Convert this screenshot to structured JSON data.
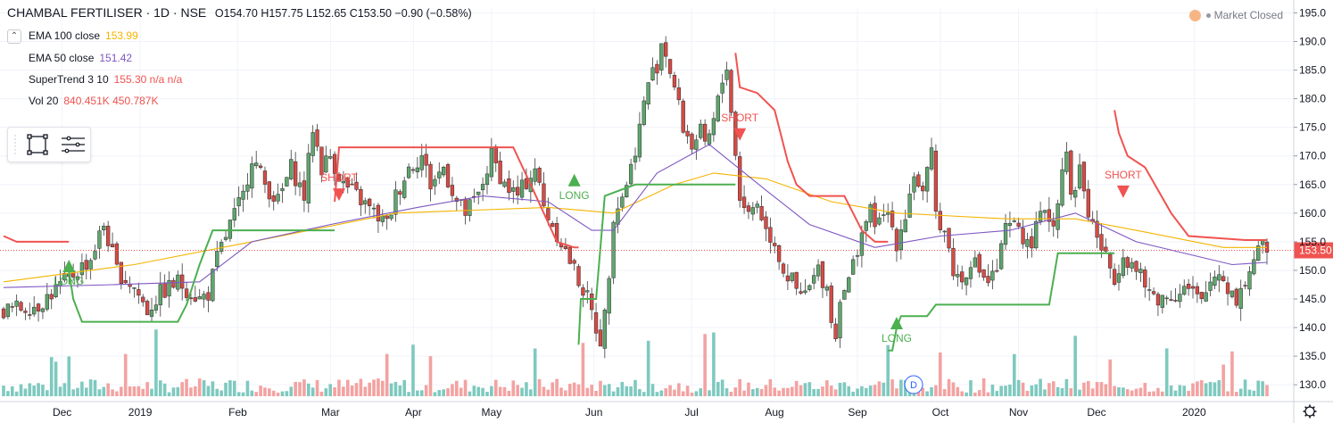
{
  "header": {
    "symbol": "CHAMBAL FERTILISER · 1D · NSE",
    "ohlc": "O154.70  H157.75  L152.65  C153.50  −0.90 (−0.58%)"
  },
  "status": {
    "label": "Market Closed"
  },
  "indicators": [
    {
      "label": "EMA 100 close",
      "value": "153.99",
      "color": "#f4b400"
    },
    {
      "label": "EMA 50 close",
      "value": "151.42",
      "color": "#7e57c2"
    },
    {
      "label": "SuperTrend 3 10",
      "value": "155.30  n/a  n/a",
      "color": "#ef5350"
    },
    {
      "label": "Vol 20",
      "value": "840.451K  450.787K",
      "color": "#ef5350"
    }
  ],
  "price_label": "153.50",
  "colors": {
    "up": "#4caf50",
    "down": "#ef5350",
    "up_body": "#5fa66d",
    "down_body": "#d64b45",
    "ema100": "#f4b400",
    "ema50": "#7e57c2",
    "st_up": "#4caf50",
    "st_down": "#f05350",
    "vol_up": "#7ec9bf",
    "vol_down": "#f3a2a1"
  },
  "chart_data": {
    "type": "candlestick",
    "title": "CHAMBAL FERTILISER · 1D · NSE",
    "ylim": [
      128,
      196
    ],
    "y_ticks": [
      130,
      135,
      140,
      145,
      150,
      155,
      160,
      165,
      170,
      175,
      180,
      185,
      190,
      195
    ],
    "x_ticks": [
      "Dec",
      "2019",
      "Feb",
      "Mar",
      "Apr",
      "May",
      "Jun",
      "Jul",
      "Aug",
      "Sep",
      "Oct",
      "Nov",
      "Dec",
      "2020"
    ],
    "close_path": [
      [
        0,
        143
      ],
      [
        8,
        144
      ],
      [
        14,
        148
      ],
      [
        20,
        152
      ],
      [
        23,
        158
      ],
      [
        26,
        150
      ],
      [
        30,
        147
      ],
      [
        33,
        143
      ],
      [
        36,
        146
      ],
      [
        40,
        148
      ],
      [
        45,
        145
      ],
      [
        47,
        146
      ],
      [
        49,
        152
      ],
      [
        52,
        158
      ],
      [
        55,
        163
      ],
      [
        57,
        170
      ],
      [
        60,
        165
      ],
      [
        63,
        162
      ],
      [
        66,
        168
      ],
      [
        69,
        163
      ],
      [
        71,
        175
      ],
      [
        73,
        168
      ],
      [
        75,
        170
      ],
      [
        78,
        165
      ],
      [
        81,
        163
      ],
      [
        85,
        160
      ],
      [
        88,
        158
      ],
      [
        90,
        163
      ],
      [
        93,
        168
      ],
      [
        96,
        170
      ],
      [
        98,
        165
      ],
      [
        101,
        168
      ],
      [
        104,
        162
      ],
      [
        106,
        160
      ],
      [
        109,
        163
      ],
      [
        112,
        170
      ],
      [
        115,
        165
      ],
      [
        118,
        163
      ],
      [
        122,
        168
      ],
      [
        124,
        161
      ],
      [
        126,
        158
      ],
      [
        128,
        155
      ],
      [
        131,
        150
      ],
      [
        134,
        145
      ],
      [
        136,
        140
      ],
      [
        137,
        138
      ],
      [
        138,
        142
      ],
      [
        139,
        150
      ],
      [
        140,
        160
      ],
      [
        142,
        163
      ],
      [
        144,
        168
      ],
      [
        146,
        175
      ],
      [
        148,
        183
      ],
      [
        150,
        186
      ],
      [
        151,
        190
      ],
      [
        152,
        188
      ],
      [
        154,
        182
      ],
      [
        156,
        175
      ],
      [
        158,
        172
      ],
      [
        160,
        174
      ],
      [
        161,
        171
      ],
      [
        163,
        176
      ],
      [
        165,
        183
      ],
      [
        166,
        186
      ],
      [
        167,
        178
      ],
      [
        168,
        170
      ],
      [
        169,
        163
      ],
      [
        171,
        160
      ],
      [
        173,
        162
      ],
      [
        175,
        157
      ],
      [
        177,
        155
      ],
      [
        179,
        150
      ],
      [
        181,
        148
      ],
      [
        183,
        145
      ],
      [
        185,
        147
      ],
      [
        187,
        150
      ],
      [
        189,
        147
      ],
      [
        190,
        142
      ],
      [
        191,
        138
      ],
      [
        192,
        146
      ],
      [
        194,
        148
      ],
      [
        195,
        151
      ],
      [
        197,
        157
      ],
      [
        199,
        160
      ],
      [
        201,
        158
      ],
      [
        203,
        160
      ],
      [
        205,
        155
      ],
      [
        207,
        160
      ],
      [
        209,
        167
      ],
      [
        211,
        163
      ],
      [
        213,
        170
      ],
      [
        214,
        160
      ],
      [
        216,
        157
      ],
      [
        218,
        150
      ],
      [
        220,
        148
      ],
      [
        222,
        152
      ],
      [
        224,
        150
      ],
      [
        226,
        148
      ],
      [
        228,
        150
      ],
      [
        230,
        157
      ],
      [
        233,
        158
      ],
      [
        235,
        154
      ],
      [
        237,
        157
      ],
      [
        239,
        161
      ],
      [
        241,
        158
      ],
      [
        243,
        168
      ],
      [
        244,
        172
      ],
      [
        245,
        162
      ],
      [
        247,
        168
      ],
      [
        249,
        160
      ],
      [
        251,
        156
      ],
      [
        253,
        152
      ],
      [
        255,
        149
      ],
      [
        257,
        153
      ],
      [
        260,
        150
      ],
      [
        263,
        146
      ],
      [
        266,
        145
      ],
      [
        269,
        146
      ],
      [
        271,
        147
      ],
      [
        273,
        146
      ],
      [
        275,
        144
      ],
      [
        277,
        148
      ],
      [
        279,
        150
      ],
      [
        281,
        147
      ],
      [
        283,
        145
      ],
      [
        285,
        148
      ],
      [
        287,
        152
      ],
      [
        289,
        154
      ],
      [
        290,
        153.5
      ]
    ],
    "last_price": 153.5,
    "ema100_path": [
      [
        0,
        148
      ],
      [
        30,
        151
      ],
      [
        57,
        155
      ],
      [
        90,
        160
      ],
      [
        125,
        161
      ],
      [
        140,
        160
      ],
      [
        154,
        165
      ],
      [
        163,
        167
      ],
      [
        175,
        166
      ],
      [
        190,
        162
      ],
      [
        205,
        160
      ],
      [
        230,
        159
      ],
      [
        246,
        159
      ],
      [
        260,
        157
      ],
      [
        280,
        154
      ],
      [
        290,
        154
      ]
    ],
    "ema50_path": [
      [
        0,
        147
      ],
      [
        25,
        147.5
      ],
      [
        45,
        148
      ],
      [
        57,
        155
      ],
      [
        75,
        158
      ],
      [
        95,
        161
      ],
      [
        110,
        163
      ],
      [
        125,
        162
      ],
      [
        135,
        157
      ],
      [
        140,
        157
      ],
      [
        150,
        167
      ],
      [
        162,
        172
      ],
      [
        175,
        164
      ],
      [
        185,
        158
      ],
      [
        200,
        154
      ],
      [
        215,
        156
      ],
      [
        231,
        157
      ],
      [
        246,
        160
      ],
      [
        260,
        155
      ],
      [
        282,
        151
      ],
      [
        290,
        151.4
      ]
    ],
    "supertrend_segments": [
      {
        "trend": "down",
        "points": [
          [
            0,
            156
          ],
          [
            3,
            155
          ],
          [
            10,
            155
          ],
          [
            15,
            155
          ]
        ]
      },
      {
        "trend": "up",
        "points": [
          [
            15,
            150
          ],
          [
            16,
            145
          ],
          [
            18,
            141
          ],
          [
            28,
            141
          ],
          [
            40,
            141
          ],
          [
            42,
            144
          ],
          [
            45,
            151
          ],
          [
            48,
            157
          ],
          [
            58,
            157
          ],
          [
            73,
            157
          ],
          [
            76,
            157
          ]
        ]
      },
      {
        "trend": "down",
        "points": [
          [
            76,
            162
          ],
          [
            77,
            171.5
          ],
          [
            95,
            171.5
          ],
          [
            117,
            171.5
          ],
          [
            121,
            165
          ],
          [
            124,
            160
          ],
          [
            127,
            155
          ],
          [
            131,
            154
          ],
          [
            132,
            154
          ]
        ]
      },
      {
        "trend": "up",
        "points": [
          [
            132,
            137
          ],
          [
            132.5,
            145
          ],
          [
            136,
            145
          ],
          [
            138,
            163
          ],
          [
            145,
            165
          ],
          [
            163,
            165
          ],
          [
            168,
            165
          ]
        ]
      },
      {
        "trend": "down",
        "points": [
          [
            168,
            188
          ],
          [
            169,
            182
          ],
          [
            173,
            181
          ],
          [
            177,
            178
          ],
          [
            180,
            169
          ],
          [
            182,
            165
          ],
          [
            185,
            163
          ],
          [
            193,
            163
          ],
          [
            197,
            157
          ],
          [
            200,
            155
          ],
          [
            203,
            155
          ]
        ]
      },
      {
        "trend": "up",
        "points": [
          [
            203,
            136
          ],
          [
            204,
            136
          ],
          [
            205,
            140
          ],
          [
            206,
            142
          ],
          [
            212,
            142
          ],
          [
            214,
            144
          ],
          [
            240,
            144
          ],
          [
            242,
            153
          ],
          [
            255,
            153
          ]
        ]
      },
      {
        "trend": "down",
        "points": [
          [
            255,
            178
          ],
          [
            256,
            174
          ],
          [
            258,
            170
          ],
          [
            262,
            168
          ],
          [
            268,
            160
          ],
          [
            272,
            156
          ],
          [
            285,
            155.3
          ],
          [
            290,
            155.3
          ]
        ]
      }
    ],
    "markers": [
      {
        "text": "LONG",
        "index": 15,
        "type": "long"
      },
      {
        "text": "SHORT",
        "index": 77,
        "type": "short"
      },
      {
        "text": "LONG",
        "index": 131,
        "type": "long"
      },
      {
        "text": "SHORT",
        "index": 169,
        "type": "short"
      },
      {
        "text": "LONG",
        "index": 205,
        "type": "long"
      },
      {
        "text": "SHORT",
        "index": 257,
        "type": "short"
      }
    ],
    "event_badge": "D"
  }
}
